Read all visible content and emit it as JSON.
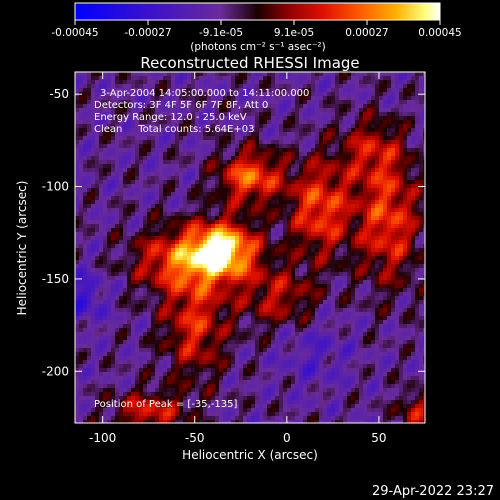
{
  "colorbar": {
    "tick_labels": [
      "-0.00045",
      "-0.00027",
      "-9.1e-05",
      "9.1e-05",
      "0.00027",
      "0.00045"
    ],
    "unit_label": "(photons cm⁻² s⁻¹ asec⁻²)",
    "range": [
      -0.00045,
      0.00045
    ]
  },
  "chart_data": {
    "type": "heatmap",
    "title": "Reconstructed RHESSI Image",
    "xlabel": "Heliocentric X (arcsec)",
    "ylabel": "Heliocentric Y (arcsec)",
    "xlim": [
      -115,
      75
    ],
    "ylim": [
      -228,
      -38
    ],
    "x_ticks": [
      -100,
      -50,
      0,
      50
    ],
    "y_ticks": [
      -50,
      -100,
      -150,
      -200
    ],
    "annotations": [
      "3-Apr-2004 14:05:00.000 to 14:11:00.000",
      "Detectors: 3F 4F 5F 6F 7F 8F, Att 0",
      "Energy Range: 12.0 - 25.0 keV",
      "Clean     Total counts: 5.64E+03"
    ],
    "peak_label": "Position of Peak = [-35,-135]",
    "peak": [
      -35,
      -135
    ],
    "colormap": "blue-purple-red-yellow-white"
  },
  "footer": {
    "timestamp": "29-Apr-2022 23:27"
  }
}
